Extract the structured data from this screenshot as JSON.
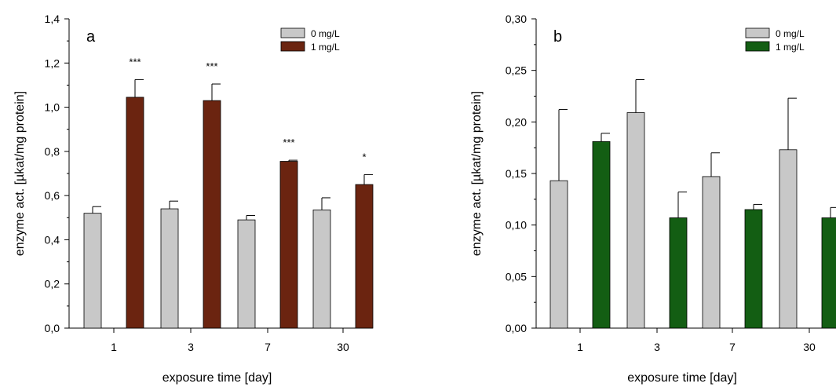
{
  "chart_data": [
    {
      "type": "bar",
      "panel_label": "a",
      "categories": [
        "1",
        "3",
        "7",
        "30"
      ],
      "series": [
        {
          "name": "0 mg/L",
          "color": "#c8c8c8",
          "values": [
            0.52,
            0.54,
            0.49,
            0.535
          ],
          "errors": [
            0.03,
            0.035,
            0.02,
            0.055
          ]
        },
        {
          "name": "1 mg/L",
          "color": "#6b2410",
          "values": [
            1.045,
            1.03,
            0.755,
            0.65
          ],
          "errors": [
            0.08,
            0.075,
            0.005,
            0.045
          ]
        }
      ],
      "significance": [
        "***",
        "***",
        "***",
        "*"
      ],
      "xlabel": "exposure time [day]",
      "ylabel": "enzyme act. [µkat/mg protein]",
      "ylim": [
        0,
        1.4
      ],
      "yticks": [
        "0,0",
        "0,2",
        "0,4",
        "0,6",
        "0,8",
        "1,0",
        "1,2",
        "1,4"
      ],
      "grid": false,
      "legend": "top-right"
    },
    {
      "type": "bar",
      "panel_label": "b",
      "categories": [
        "1",
        "3",
        "7",
        "30"
      ],
      "series": [
        {
          "name": "0 mg/L",
          "color": "#c8c8c8",
          "values": [
            0.143,
            0.209,
            0.147,
            0.173
          ],
          "errors": [
            0.069,
            0.032,
            0.023,
            0.05
          ]
        },
        {
          "name": "1 mg/L",
          "color": "#135e13",
          "values": [
            0.181,
            0.107,
            0.115,
            0.107
          ],
          "errors": [
            0.008,
            0.025,
            0.005,
            0.01
          ]
        }
      ],
      "significance": [
        "",
        "",
        "",
        ""
      ],
      "xlabel": "exposure time [day]",
      "ylabel": "enzyme act. [µkat/mg protein]",
      "ylim": [
        0,
        0.3
      ],
      "yticks": [
        "0,00",
        "0,05",
        "0,10",
        "0,15",
        "0,20",
        "0,25",
        "0,30"
      ],
      "grid": false,
      "legend": "top-right"
    }
  ]
}
